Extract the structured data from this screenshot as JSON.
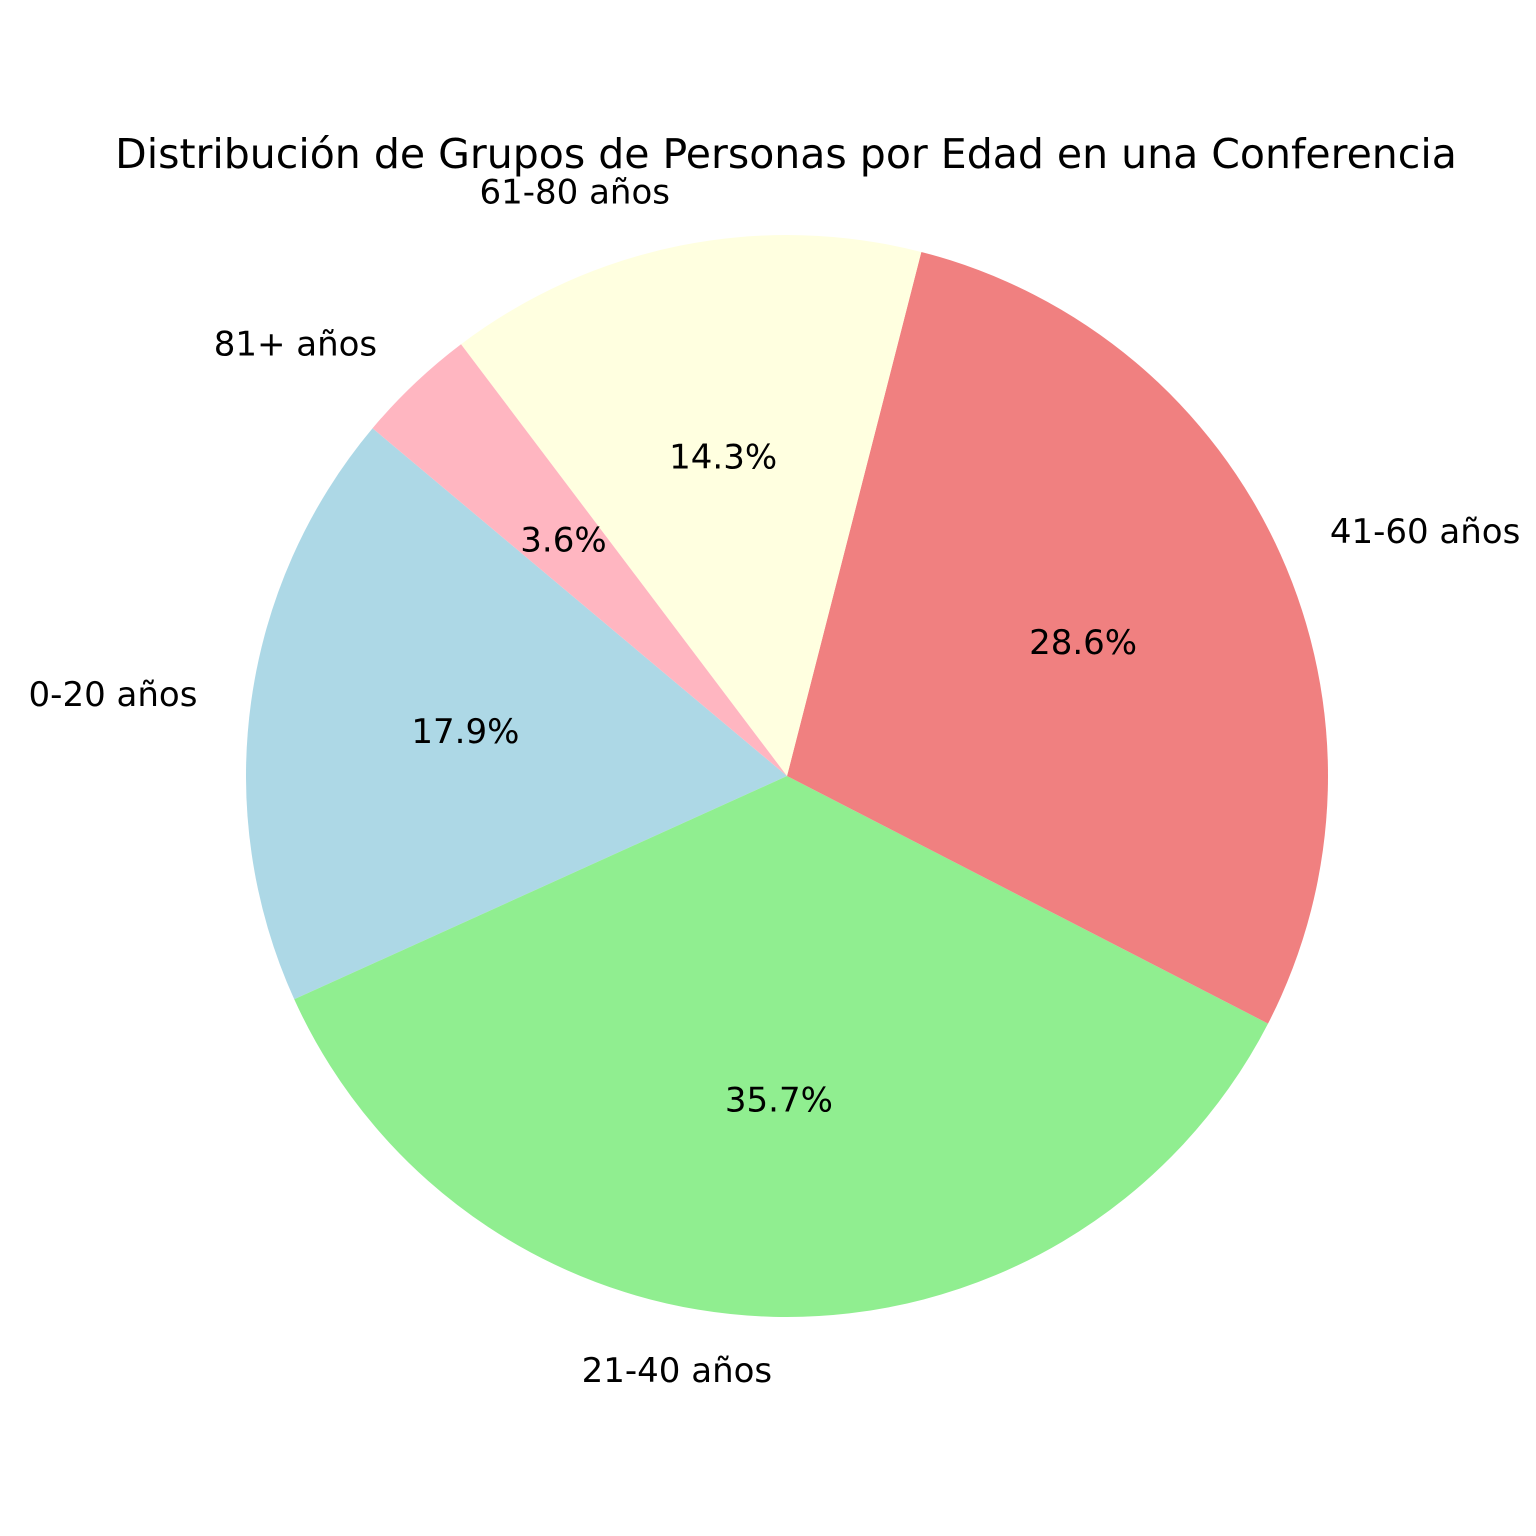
{
  "chart_data": {
    "type": "pie",
    "title": "Distribución de Grupos de Personas por Edad en una Conferencia",
    "start_angle_deg": 140,
    "direction": "counterclockwise",
    "slices": [
      {
        "label": "0-20 años",
        "value": 17.9,
        "pct_label": "17.9%",
        "color": "#add8e6"
      },
      {
        "label": "21-40 años",
        "value": 35.7,
        "pct_label": "35.7%",
        "color": "#90ee90"
      },
      {
        "label": "41-60 años",
        "value": 28.6,
        "pct_label": "28.6%",
        "color": "#f08080"
      },
      {
        "label": "61-80 años",
        "value": 14.3,
        "pct_label": "14.3%",
        "color": "#ffffe0"
      },
      {
        "label": "81+ años",
        "value": 3.6,
        "pct_label": "3.6%",
        "color": "#ffb6c1"
      }
    ]
  }
}
